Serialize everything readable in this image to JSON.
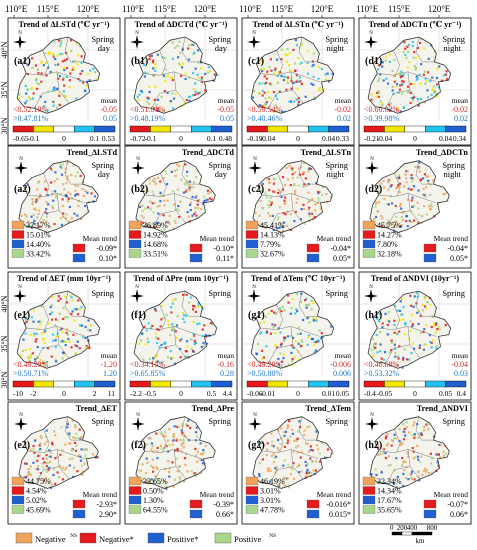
{
  "lon_ticks": [
    "110°E",
    "115°E",
    "120°E"
  ],
  "lat_ticks": [
    "40°N",
    "35°N",
    "30°N"
  ],
  "colors": {
    "red": "#e41a1c",
    "yellow": "#f2e600",
    "cyan": "#22c3ee",
    "blue": "#1f5fd0",
    "navy": "#0d1f6b",
    "brown_ns": "#f0a35a",
    "light_green_ns": "#a8d68a",
    "neg_text": "#d62828",
    "pos_text": "#1f77c8"
  },
  "rows": [
    {
      "type": "trend",
      "panels": [
        {
          "id": "a1",
          "label": "(a1)",
          "title": "Trend of ΔLSTd (℃ yr⁻¹)",
          "season": "Spring",
          "time": "day",
          "neg_pct": "<0.52.19%",
          "pos_pct": ">0.47.81%",
          "mean_label": "mean",
          "mean_neg": "-0.05",
          "mean_pos": "0.05",
          "ticks": [
            "-0.65",
            "-0.1",
            "0",
            "0.1",
            "0.53"
          ]
        },
        {
          "id": "b1",
          "label": "(b1)",
          "title": "Trend of ΔDCTd (℃ yr⁻¹)",
          "season": "Spring",
          "time": "day",
          "neg_pct": "<0.51.81%",
          "pos_pct": ">0.48.19%",
          "mean_label": "mean",
          "mean_neg": "-0.05",
          "mean_pos": "0.05",
          "ticks": [
            "-0.72",
            "-0.1",
            "0",
            "0.1",
            "0.48"
          ]
        },
        {
          "id": "c1",
          "label": "(c1)",
          "title": "Trend of ΔLSTn (℃ yr⁻¹)",
          "season": "Spring",
          "time": "night",
          "neg_pct": "<0.59.54%",
          "pos_pct": ">0.40.46%",
          "mean_label": "mean",
          "mean_neg": "-0.02",
          "mean_pos": "0.02",
          "ticks": [
            "-0.19",
            "-0.04",
            "0",
            "0.04",
            "0.33"
          ]
        },
        {
          "id": "d1",
          "label": "(d1)",
          "title": "Trend of ΔDCTn (℃ yr⁻¹)",
          "season": "Spring",
          "time": "night",
          "neg_pct": "<0.60.02%",
          "pos_pct": ">0.39.98%",
          "mean_label": "mean",
          "mean_neg": "-0.02",
          "mean_pos": "0.02",
          "ticks": [
            "-0.21",
            "-0.04",
            "0",
            "0.04",
            "0.34"
          ]
        }
      ]
    },
    {
      "type": "sig",
      "panels": [
        {
          "id": "a2",
          "label": "(a2)",
          "title": "Trend_ΔLSTd",
          "season": "Spring",
          "time": "day",
          "pcts": [
            "37.17%",
            "15.01%",
            "14.40%",
            "33.42%"
          ],
          "mean_label": "Mean trend",
          "mean_neg": "-0.09*",
          "mean_pos": "0.10*"
        },
        {
          "id": "b2",
          "label": "(b2)",
          "title": "Trend_ΔDCTd",
          "season": "Spring",
          "time": "day",
          "pcts": [
            "36.89%",
            "14.92%",
            "14.68%",
            "33.51%"
          ],
          "mean_label": "Mean trend",
          "mean_neg": "-0.10*",
          "mean_pos": "0.11*"
        },
        {
          "id": "c2",
          "label": "(c2)",
          "title": "Trend_ΔLSTn",
          "season": "Spring",
          "time": "night",
          "pcts": [
            "45.41%",
            "14.13%",
            "7.79%",
            "32.67%"
          ],
          "mean_label": "Mean trend",
          "mean_neg": "-0.04*",
          "mean_pos": "0.05*"
        },
        {
          "id": "d2",
          "label": "(d2)",
          "title": "Trend_ΔDCTn",
          "season": "Spring",
          "time": "night",
          "pcts": [
            "45.75%",
            "14.27%",
            "7.80%",
            "32.18%"
          ],
          "mean_label": "Mean trend",
          "mean_neg": "-0.04*",
          "mean_pos": "0.05*"
        }
      ]
    },
    {
      "type": "trend",
      "panels": [
        {
          "id": "e1",
          "label": "(e1)",
          "title": "Trend of ΔET (mm 10yr⁻¹)",
          "season": "Spring",
          "time": "",
          "neg_pct": "<0.49.29%",
          "pos_pct": ">0.50.71%",
          "mean_label": "mean",
          "mean_neg": "-1.20",
          "mean_pos": "1.20",
          "ticks": [
            "-10",
            "-2",
            "0",
            "2",
            "11"
          ]
        },
        {
          "id": "f1",
          "label": "(f1)",
          "title": "Trend of ΔPre (mm 10yr⁻¹)",
          "season": "Spring",
          "time": "",
          "neg_pct": "<0.34.15%",
          "pos_pct": ">0.65.85%",
          "mean_label": "mean",
          "mean_neg": "-0.16",
          "mean_pos": "0.28",
          "ticks": [
            "-2.2",
            "-0.5",
            "0",
            "0.5",
            "4.4"
          ]
        },
        {
          "id": "g1",
          "label": "(g1)",
          "title": "Trend of ΔTem (℃ 10yr⁻¹)",
          "season": "Spring",
          "time": "",
          "neg_pct": "<0.49.20%",
          "pos_pct": ">0.50.80%",
          "mean_label": "mean",
          "mean_neg": "-0.006",
          "mean_pos": "0.006",
          "ticks": [
            "-0.06",
            "-0.01",
            "0",
            "0.01",
            "0.05"
          ]
        },
        {
          "id": "h1",
          "label": "(h1)",
          "title": "Trend of ΔNDVI (10yr⁻¹)",
          "season": "Spring",
          "time": "",
          "neg_pct": "<0.46.68%",
          "pos_pct": ">0.53.32%",
          "mean_label": "mean",
          "mean_neg": "-0.04",
          "mean_pos": "0.03",
          "ticks": [
            "-0.4",
            "-0.05",
            "0",
            "0.05",
            "0.4"
          ]
        }
      ]
    },
    {
      "type": "sig",
      "panels": [
        {
          "id": "e2",
          "label": "(e2)",
          "title": "Trend_ΔET",
          "season": "Spring",
          "time": "",
          "pcts": [
            "44.75%",
            "4.54%",
            "5.02%",
            "45.69%"
          ],
          "mean_label": "Mean trend",
          "mean_neg": "-2.93*",
          "mean_pos": "2.90*"
        },
        {
          "id": "f2",
          "label": "(f2)",
          "title": "Trend_ΔPre",
          "season": "Spring",
          "time": "",
          "pcts": [
            "33.65%",
            "0.50%",
            "1.30%",
            "64.55%"
          ],
          "mean_label": "Mean trend",
          "mean_neg": "-0.39*",
          "mean_pos": "0.66*"
        },
        {
          "id": "g2",
          "label": "(g2)",
          "title": "Trend_ΔTem",
          "season": "Spring",
          "time": "",
          "pcts": [
            "46.19%",
            "3.01%",
            "3.01%",
            "47.78%"
          ],
          "mean_label": "Mean trend",
          "mean_neg": "-0.016*",
          "mean_pos": "0.015*"
        },
        {
          "id": "h2",
          "label": "(h2)",
          "title": "Trend_ΔNDVI",
          "season": "Spring",
          "time": "",
          "pcts": [
            "32.34%",
            "14.34%",
            "17.67%",
            "35.65%"
          ],
          "mean_label": "Mean trend",
          "mean_neg": "-0.07*",
          "mean_pos": "0.06*"
        }
      ]
    }
  ],
  "legend": {
    "items": [
      "Negative",
      "Negative*",
      "Positive*",
      "Positive"
    ],
    "superscripts": [
      "NS",
      "",
      "",
      "NS"
    ],
    "scale": [
      "0",
      "200",
      "400",
      "800"
    ],
    "scale_unit": "km"
  }
}
